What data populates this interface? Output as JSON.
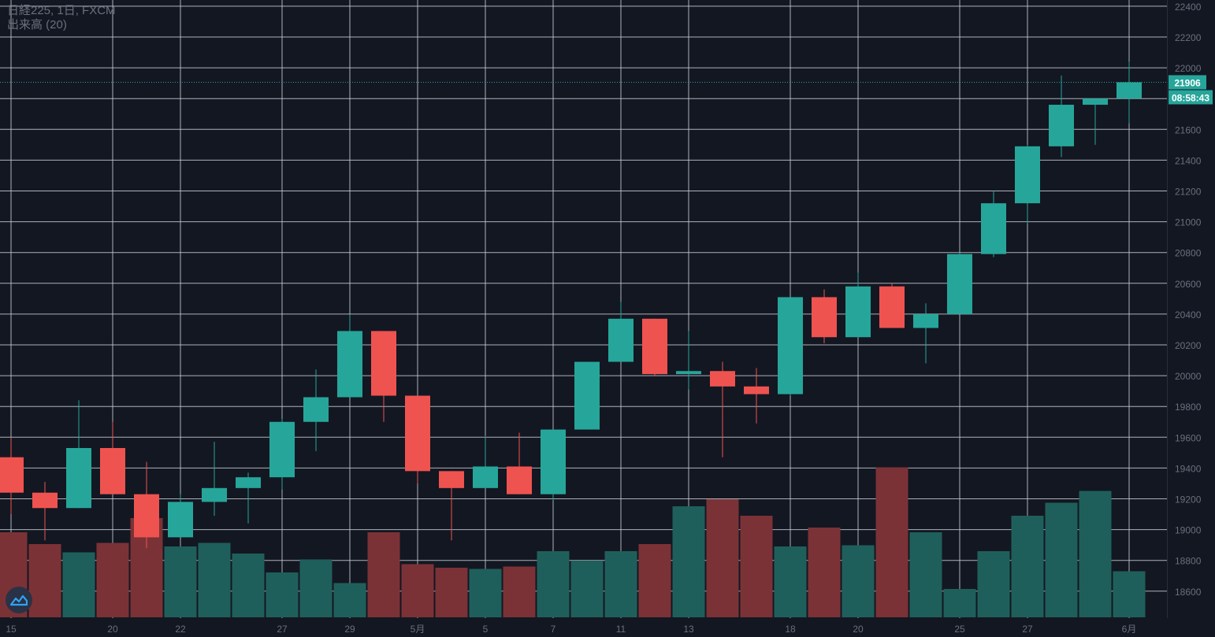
{
  "legend": {
    "symbol_line": "日経225, 1日, FXCM",
    "volume_line": "出来高 (20)"
  },
  "price_label": {
    "value": "21906",
    "countdown": "08:58:43"
  },
  "icons": {
    "logo": "tradingview-logo-icon"
  },
  "colors": {
    "background": "#131722",
    "grid": "#c9ccd3",
    "up": "#26a69a",
    "down": "#ef5350",
    "volume_up": "#1f5f5b",
    "volume_down": "#7b3236",
    "axis_text": "#6a6f7c",
    "price_line": "#26a69a"
  },
  "chart_data": {
    "type": "candlestick",
    "x_tick_labels": [
      "15",
      "20",
      "22",
      "27",
      "29",
      "5月",
      "5",
      "7",
      "11",
      "13",
      "18",
      "20",
      "25",
      "27",
      "6月"
    ],
    "x_tick_candle_index": [
      0,
      3,
      5,
      8,
      10,
      12,
      14,
      16,
      18,
      20,
      23,
      25,
      28,
      30,
      33
    ],
    "y_tick_labels": [
      "18600",
      "18800",
      "19000",
      "19200",
      "19400",
      "19600",
      "19800",
      "20000",
      "20200",
      "20400",
      "20600",
      "20800",
      "21000",
      "21200",
      "21400",
      "21600",
      "21800",
      "22000",
      "22200",
      "22400"
    ],
    "ylim": [
      18420,
      22420
    ],
    "grid": true,
    "last_price": 21906,
    "candles": [
      {
        "open": 19470,
        "high": 19600,
        "low": 19100,
        "close": 19240
      },
      {
        "open": 19240,
        "high": 19310,
        "low": 18930,
        "close": 19140
      },
      {
        "open": 19140,
        "high": 19840,
        "low": 19140,
        "close": 19530
      },
      {
        "open": 19530,
        "high": 19700,
        "low": 19230,
        "close": 19230
      },
      {
        "open": 19230,
        "high": 19440,
        "low": 18880,
        "close": 18950
      },
      {
        "open": 18950,
        "high": 19230,
        "low": 18950,
        "close": 19180
      },
      {
        "open": 19180,
        "high": 19570,
        "low": 19090,
        "close": 19270
      },
      {
        "open": 19270,
        "high": 19370,
        "low": 19040,
        "close": 19340
      },
      {
        "open": 19340,
        "high": 19720,
        "low": 19260,
        "close": 19700
      },
      {
        "open": 19700,
        "high": 20040,
        "low": 19510,
        "close": 19860
      },
      {
        "open": 19860,
        "high": 20400,
        "low": 19860,
        "close": 20290
      },
      {
        "open": 20290,
        "high": 20290,
        "low": 19700,
        "close": 19870
      },
      {
        "open": 19870,
        "high": 19870,
        "low": 19300,
        "close": 19380
      },
      {
        "open": 19380,
        "high": 19380,
        "low": 18930,
        "close": 19270
      },
      {
        "open": 19270,
        "high": 19610,
        "low": 19270,
        "close": 19410
      },
      {
        "open": 19410,
        "high": 19630,
        "low": 19230,
        "close": 19230
      },
      {
        "open": 19230,
        "high": 19650,
        "low": 19190,
        "close": 19650
      },
      {
        "open": 19650,
        "high": 20090,
        "low": 19650,
        "close": 20090
      },
      {
        "open": 20090,
        "high": 20480,
        "low": 20090,
        "close": 20370
      },
      {
        "open": 20370,
        "high": 20370,
        "low": 20000,
        "close": 20010
      },
      {
        "open": 20010,
        "high": 20290,
        "low": 19910,
        "close": 20030
      },
      {
        "open": 20030,
        "high": 20090,
        "low": 19470,
        "close": 19930
      },
      {
        "open": 19930,
        "high": 20050,
        "low": 19690,
        "close": 19880
      },
      {
        "open": 19880,
        "high": 20510,
        "low": 19870,
        "close": 20510
      },
      {
        "open": 20510,
        "high": 20560,
        "low": 20210,
        "close": 20250
      },
      {
        "open": 20250,
        "high": 20670,
        "low": 20250,
        "close": 20580
      },
      {
        "open": 20580,
        "high": 20600,
        "low": 20310,
        "close": 20310
      },
      {
        "open": 20310,
        "high": 20470,
        "low": 20080,
        "close": 20400
      },
      {
        "open": 20400,
        "high": 20800,
        "low": 20400,
        "close": 20790
      },
      {
        "open": 20790,
        "high": 21200,
        "low": 20770,
        "close": 21120
      },
      {
        "open": 21120,
        "high": 21500,
        "low": 20990,
        "close": 21490
      },
      {
        "open": 21490,
        "high": 21950,
        "low": 21420,
        "close": 21760
      },
      {
        "open": 21760,
        "high": 21800,
        "low": 21500,
        "close": 21800
      },
      {
        "open": 21800,
        "high": 22040,
        "low": 21640,
        "close": 21906
      }
    ],
    "volume_relative": [
      0.72,
      0.62,
      0.55,
      0.63,
      0.84,
      0.6,
      0.63,
      0.54,
      0.38,
      0.49,
      0.29,
      0.72,
      0.45,
      0.42,
      0.41,
      0.43,
      0.56,
      0.48,
      0.56,
      0.62,
      0.94,
      1.0,
      0.86,
      0.6,
      0.76,
      0.61,
      1.27,
      0.72,
      0.24,
      0.56,
      0.86,
      0.97,
      1.07,
      0.39
    ]
  }
}
